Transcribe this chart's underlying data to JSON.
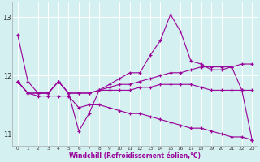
{
  "xlabel": "Windchill (Refroidissement éolien,°C)",
  "background_color": "#d4f0f0",
  "grid_color": "#ffffff",
  "line_color": "#990099",
  "hours": [
    0,
    1,
    2,
    3,
    4,
    5,
    6,
    7,
    8,
    9,
    10,
    11,
    12,
    13,
    14,
    15,
    16,
    17,
    18,
    19,
    20,
    21,
    22,
    23
  ],
  "series1": [
    12.7,
    11.9,
    11.7,
    11.7,
    11.9,
    11.7,
    11.05,
    11.35,
    11.75,
    11.85,
    11.95,
    12.05,
    12.05,
    12.35,
    12.6,
    13.05,
    12.75,
    12.25,
    12.2,
    12.1,
    12.1,
    12.15,
    11.75,
    10.9
  ],
  "series2": [
    11.9,
    11.7,
    11.7,
    11.7,
    11.9,
    11.7,
    11.7,
    11.7,
    11.75,
    11.8,
    11.85,
    11.85,
    11.9,
    11.95,
    12.0,
    12.05,
    12.05,
    12.1,
    12.15,
    12.15,
    12.15,
    12.15,
    12.2,
    12.2
  ],
  "series3": [
    11.9,
    11.7,
    11.7,
    11.7,
    11.9,
    11.7,
    11.7,
    11.7,
    11.75,
    11.75,
    11.75,
    11.75,
    11.8,
    11.8,
    11.85,
    11.85,
    11.85,
    11.85,
    11.8,
    11.75,
    11.75,
    11.75,
    11.75,
    11.75
  ],
  "series4": [
    11.9,
    11.7,
    11.65,
    11.65,
    11.65,
    11.65,
    11.45,
    11.5,
    11.5,
    11.45,
    11.4,
    11.35,
    11.35,
    11.3,
    11.25,
    11.2,
    11.15,
    11.1,
    11.1,
    11.05,
    11.0,
    10.95,
    10.95,
    10.9
  ],
  "ylim_min": 10.8,
  "ylim_max": 13.25,
  "yticks": [
    11,
    12,
    13
  ]
}
